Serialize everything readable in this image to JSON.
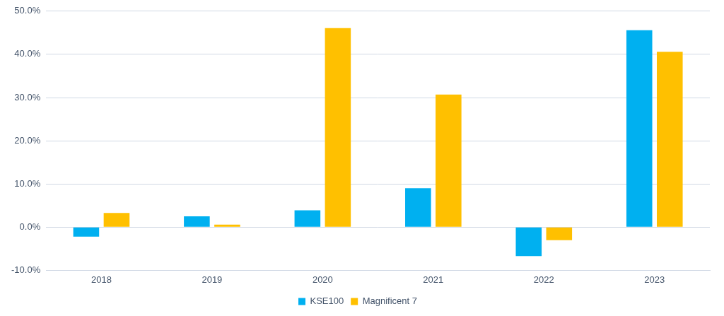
{
  "chart_data": {
    "type": "bar",
    "categories": [
      "2018",
      "2019",
      "2020",
      "2021",
      "2022",
      "2023"
    ],
    "series": [
      {
        "name": "KSE100",
        "color": "#00b0f0",
        "values": [
          -2.2,
          2.5,
          3.9,
          9.0,
          -6.7,
          45.6
        ]
      },
      {
        "name": "Magnificent 7",
        "color": "#ffc000",
        "values": [
          3.3,
          0.6,
          46.1,
          30.7,
          -3.0,
          40.6
        ]
      }
    ],
    "ylim": [
      -10,
      50
    ],
    "yticks": [
      {
        "value": -10,
        "label": "-10.0%"
      },
      {
        "value": 0,
        "label": "0.0%"
      },
      {
        "value": 10,
        "label": "10.0%"
      },
      {
        "value": 20,
        "label": "20.0%"
      },
      {
        "value": 30,
        "label": "30.0%"
      },
      {
        "value": 40,
        "label": "40.0%"
      },
      {
        "value": 50,
        "label": "50.0%"
      }
    ],
    "grid": true,
    "legend": "bottom"
  }
}
